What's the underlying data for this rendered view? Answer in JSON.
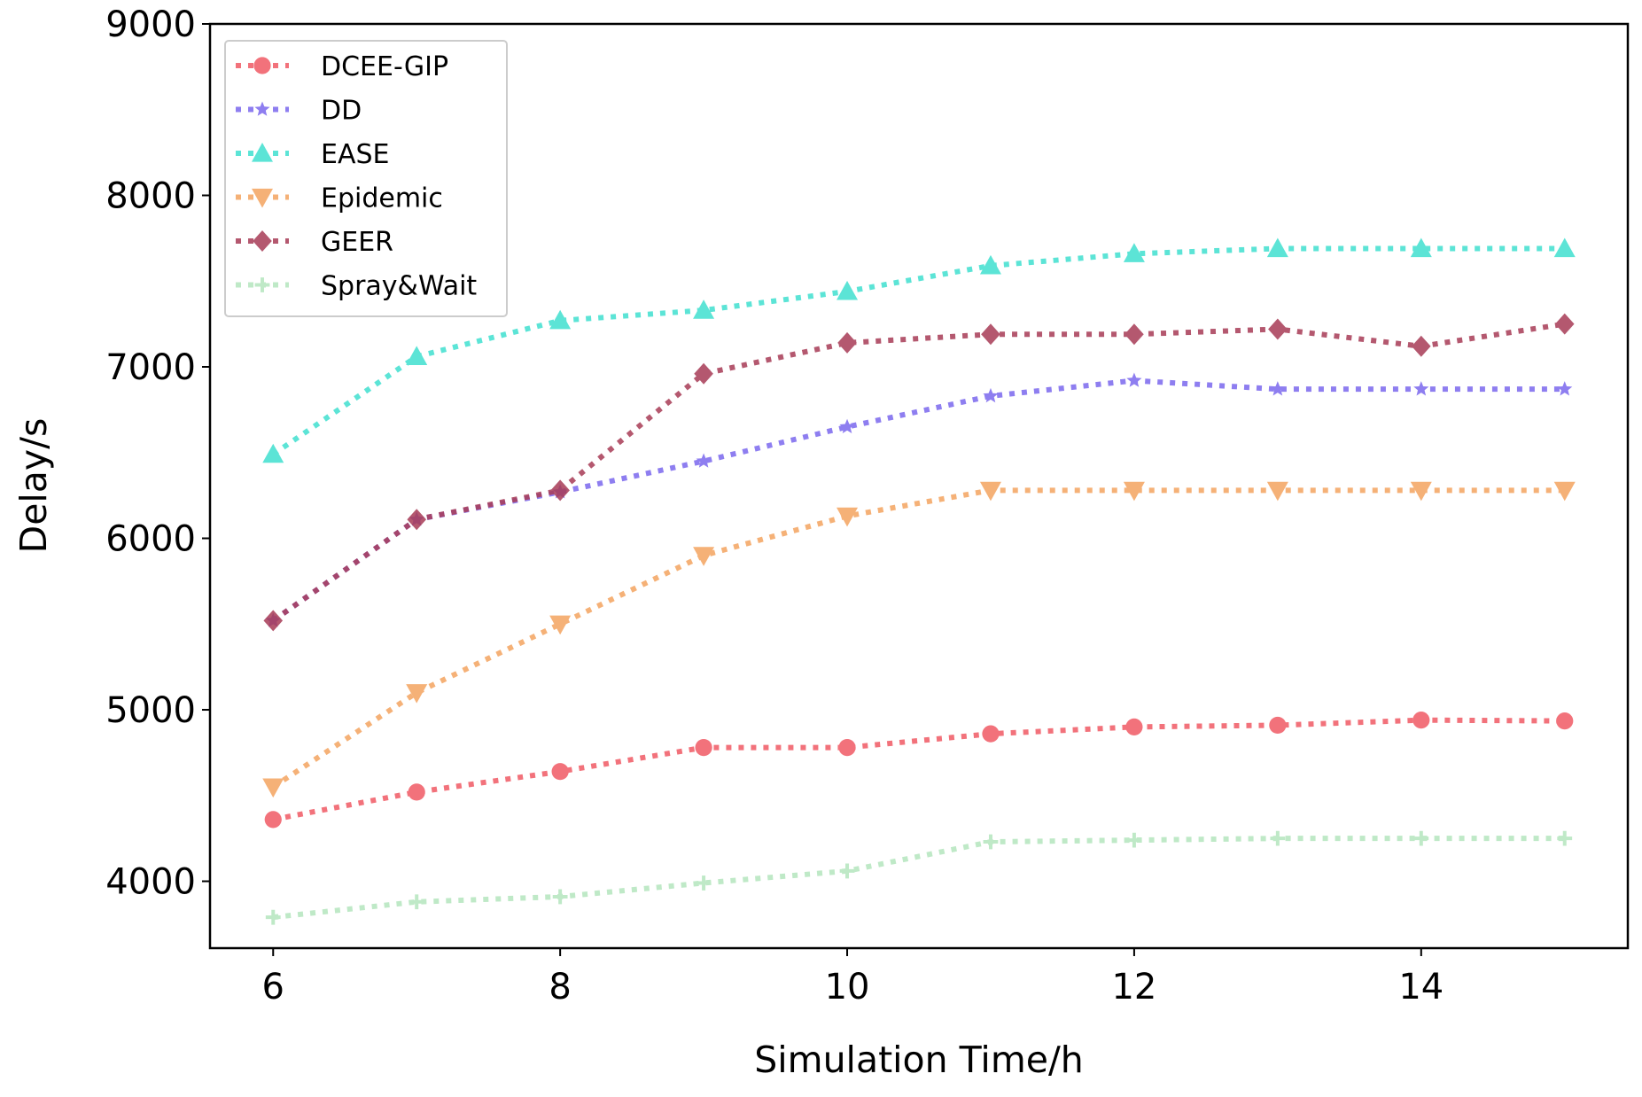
{
  "chart_data": {
    "type": "line",
    "title": "",
    "xlabel": "Simulation Time/h",
    "ylabel": "Delay/s",
    "xlim": [
      5.56,
      15.44
    ],
    "ylim": [
      3610,
      9000
    ],
    "xticks": [
      6,
      8,
      10,
      12,
      14
    ],
    "yticks": [
      4000,
      5000,
      6000,
      7000,
      8000,
      9000
    ],
    "grid": false,
    "legend_position": "top-left",
    "x": [
      6,
      7,
      8,
      9,
      10,
      11,
      12,
      13,
      14,
      15
    ],
    "series": [
      {
        "name": "DCEE-GIP",
        "color": "#f05a64",
        "marker": "circle",
        "values": [
          4360,
          4520,
          4640,
          4780,
          4780,
          4860,
          4900,
          4910,
          4940,
          4935
        ]
      },
      {
        "name": "DD",
        "color": "#7b68ee",
        "marker": "star",
        "values": [
          5520,
          6110,
          6270,
          6450,
          6650,
          6830,
          6920,
          6870,
          6870,
          6870
        ]
      },
      {
        "name": "EASE",
        "color": "#40e0d0",
        "marker": "triangle-up",
        "values": [
          6490,
          7060,
          7270,
          7330,
          7440,
          7590,
          7660,
          7690,
          7690,
          7690
        ]
      },
      {
        "name": "Epidemic",
        "color": "#f4a460",
        "marker": "triangle-down",
        "values": [
          4550,
          5100,
          5500,
          5900,
          6130,
          6280,
          6280,
          6280,
          6280,
          6280
        ]
      },
      {
        "name": "GEER",
        "color": "#a83c56",
        "marker": "diamond",
        "values": [
          5520,
          6110,
          6280,
          6960,
          7140,
          7190,
          7190,
          7220,
          7120,
          7250
        ]
      },
      {
        "name": "Spray&Wait",
        "color": "#b4e6be",
        "marker": "plus",
        "values": [
          3790,
          3880,
          3910,
          3990,
          4060,
          4230,
          4240,
          4250,
          4250,
          4250
        ]
      }
    ]
  }
}
